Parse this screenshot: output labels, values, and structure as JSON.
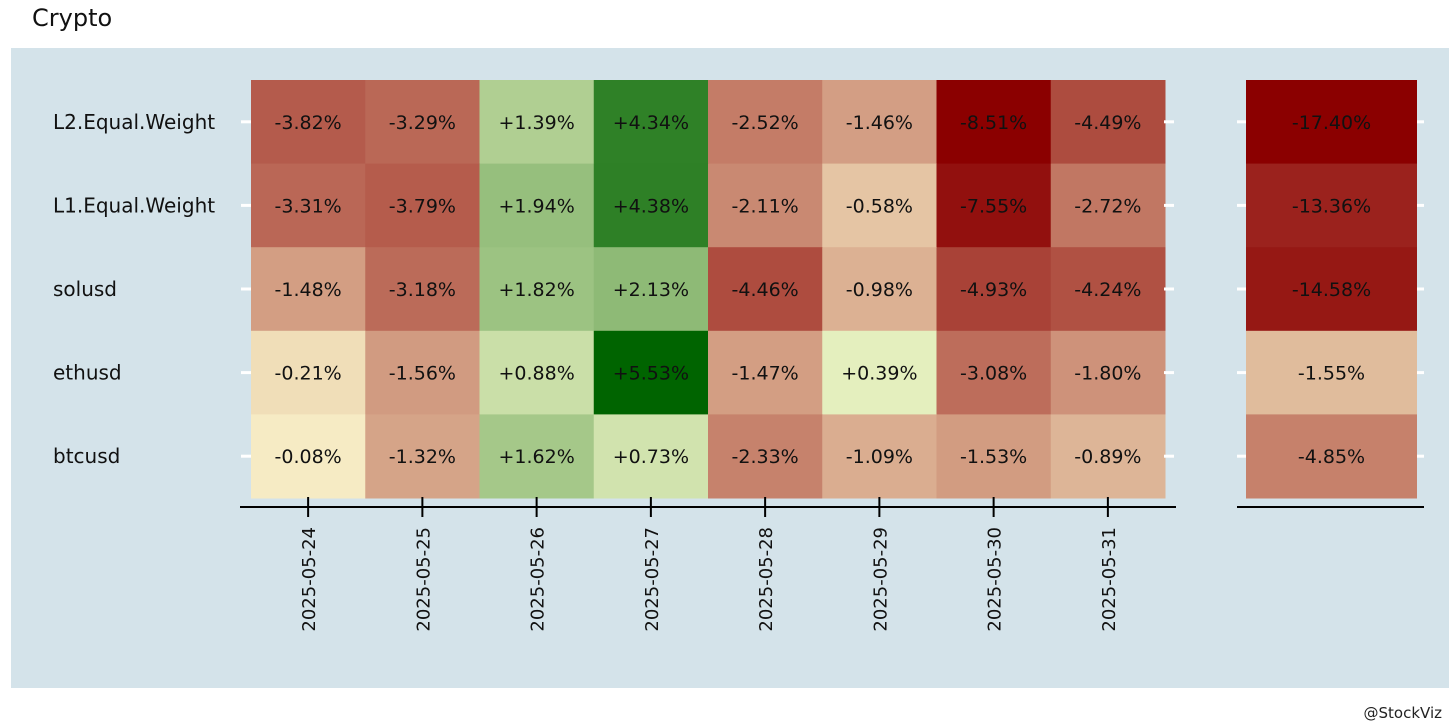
{
  "chart_data": {
    "type": "heatmap",
    "title": "Crypto",
    "credit": "@StockViz",
    "rows": [
      "L2.Equal.Weight",
      "L1.Equal.Weight",
      "solusd",
      "ethusd",
      "btcusd"
    ],
    "columns": [
      "2025-05-24",
      "2025-05-25",
      "2025-05-26",
      "2025-05-27",
      "2025-05-28",
      "2025-05-29",
      "2025-05-30",
      "2025-05-31"
    ],
    "values": [
      [
        -3.82,
        -3.29,
        1.39,
        4.34,
        -2.52,
        -1.46,
        -8.51,
        -4.49
      ],
      [
        -3.31,
        -3.79,
        1.94,
        4.38,
        -2.11,
        -0.58,
        -7.55,
        -2.72
      ],
      [
        -1.48,
        -3.18,
        1.82,
        2.13,
        -4.46,
        -0.98,
        -4.93,
        -4.24
      ],
      [
        -0.21,
        -1.56,
        0.88,
        5.53,
        -1.47,
        0.39,
        -3.08,
        -1.8
      ],
      [
        -0.08,
        -1.32,
        1.62,
        0.73,
        -2.33,
        -1.09,
        -1.53,
        -0.89
      ]
    ],
    "labels": [
      [
        "-3.82%",
        "-3.29%",
        "+1.39%",
        "+4.34%",
        "-2.52%",
        "-1.46%",
        "-8.51%",
        "-4.49%"
      ],
      [
        "-3.31%",
        "-3.79%",
        "+1.94%",
        "+4.38%",
        "-2.11%",
        "-0.58%",
        "-7.55%",
        "-2.72%"
      ],
      [
        "-1.48%",
        "-3.18%",
        "+1.82%",
        "+2.13%",
        "-4.46%",
        "-0.98%",
        "-4.93%",
        "-4.24%"
      ],
      [
        "-0.21%",
        "-1.56%",
        "+0.88%",
        "+5.53%",
        "-1.47%",
        "+0.39%",
        "-3.08%",
        "-1.80%"
      ],
      [
        "-0.08%",
        "-1.32%",
        "+1.62%",
        "+0.73%",
        "-2.33%",
        "-1.09%",
        "-1.53%",
        "-0.89%"
      ]
    ],
    "totals": [
      -17.4,
      -13.36,
      -14.58,
      -1.55,
      -4.85
    ],
    "total_labels": [
      "-17.40%",
      "-13.36%",
      "-14.58%",
      "-1.55%",
      "-4.85%"
    ],
    "colors": {
      "panel_bg": "#d4e3ea",
      "negative": "#8b0000",
      "neutral": "#ffffd4",
      "positive": "#006400"
    }
  }
}
